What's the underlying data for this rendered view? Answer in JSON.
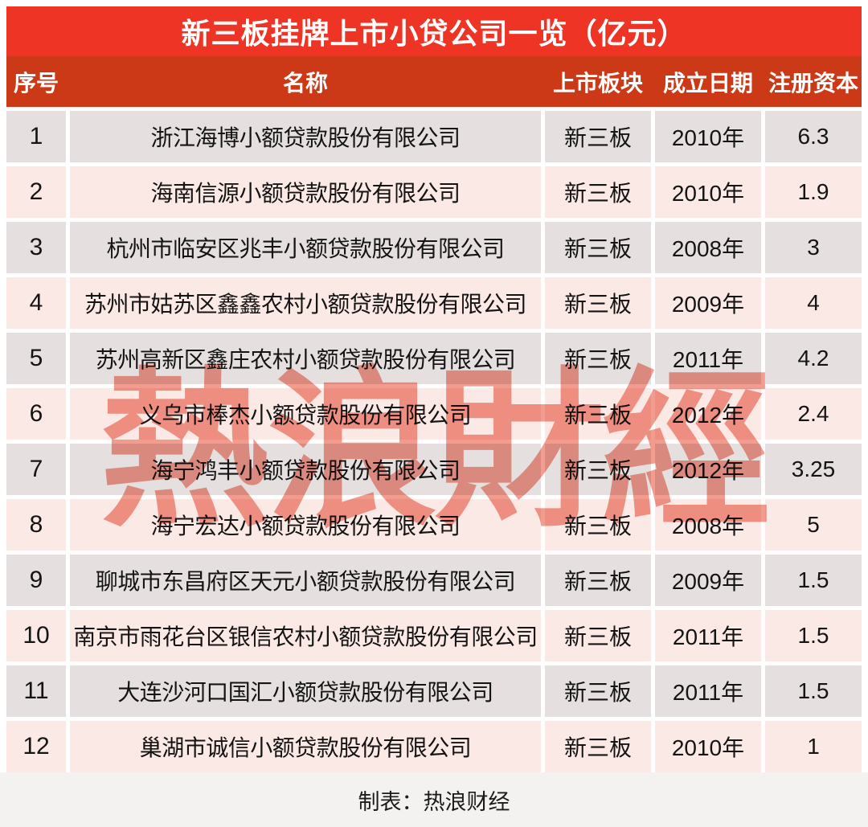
{
  "title": "新三板挂牌上市小贷公司一览（亿元）",
  "footer_note": "制表：热浪财经",
  "watermark_text": "熱浪財經",
  "colors": {
    "title_bg": "#ed3425",
    "header_bg": "#cb3917",
    "row_odd_bg": "#e5e0df",
    "row_even_bg": "#fbe9e5",
    "footer_bg": "#f3f2f1",
    "watermark_red": "#e84a33",
    "text_dark": "#141414",
    "text_white": "#ffffff"
  },
  "chart_data": {
    "type": "table",
    "title": "新三板挂牌上市小贷公司一览（亿元）",
    "unit": "亿元",
    "columns": [
      "序号",
      "名称",
      "上市板块",
      "成立日期",
      "注册资本"
    ],
    "rows": [
      [
        "1",
        "浙江海博小额贷款股份有限公司",
        "新三板",
        "2010年",
        "6.3"
      ],
      [
        "2",
        "海南信源小额贷款股份有限公司",
        "新三板",
        "2010年",
        "1.9"
      ],
      [
        "3",
        "杭州市临安区兆丰小额贷款股份有限公司",
        "新三板",
        "2008年",
        "3"
      ],
      [
        "4",
        "苏州市姑苏区鑫鑫农村小额贷款股份有限公司",
        "新三板",
        "2009年",
        "4"
      ],
      [
        "5",
        "苏州高新区鑫庄农村小额贷款股份有限公司",
        "新三板",
        "2011年",
        "4.2"
      ],
      [
        "6",
        "义乌市棒杰小额贷款股份有限公司",
        "新三板",
        "2012年",
        "2.4"
      ],
      [
        "7",
        "海宁鸿丰小额贷款股份有限公司",
        "新三板",
        "2012年",
        "3.25"
      ],
      [
        "8",
        "海宁宏达小额贷款股份有限公司",
        "新三板",
        "2008年",
        "5"
      ],
      [
        "9",
        "聊城市东昌府区天元小额贷款股份有限公司",
        "新三板",
        "2009年",
        "1.5"
      ],
      [
        "10",
        "南京市雨花台区银信农村小额贷款股份有限公司",
        "新三板",
        "2011年",
        "1.5"
      ],
      [
        "11",
        "大连沙河口国汇小额贷款股份有限公司",
        "新三板",
        "2011年",
        "1.5"
      ],
      [
        "12",
        "巢湖市诚信小额贷款股份有限公司",
        "新三板",
        "2010年",
        "1"
      ]
    ],
    "footer": "制表：热浪财经",
    "watermark": "熱浪財經",
    "layout": {
      "grid": false,
      "row_striping": "gray/pink alternating",
      "header_position": "top"
    }
  }
}
